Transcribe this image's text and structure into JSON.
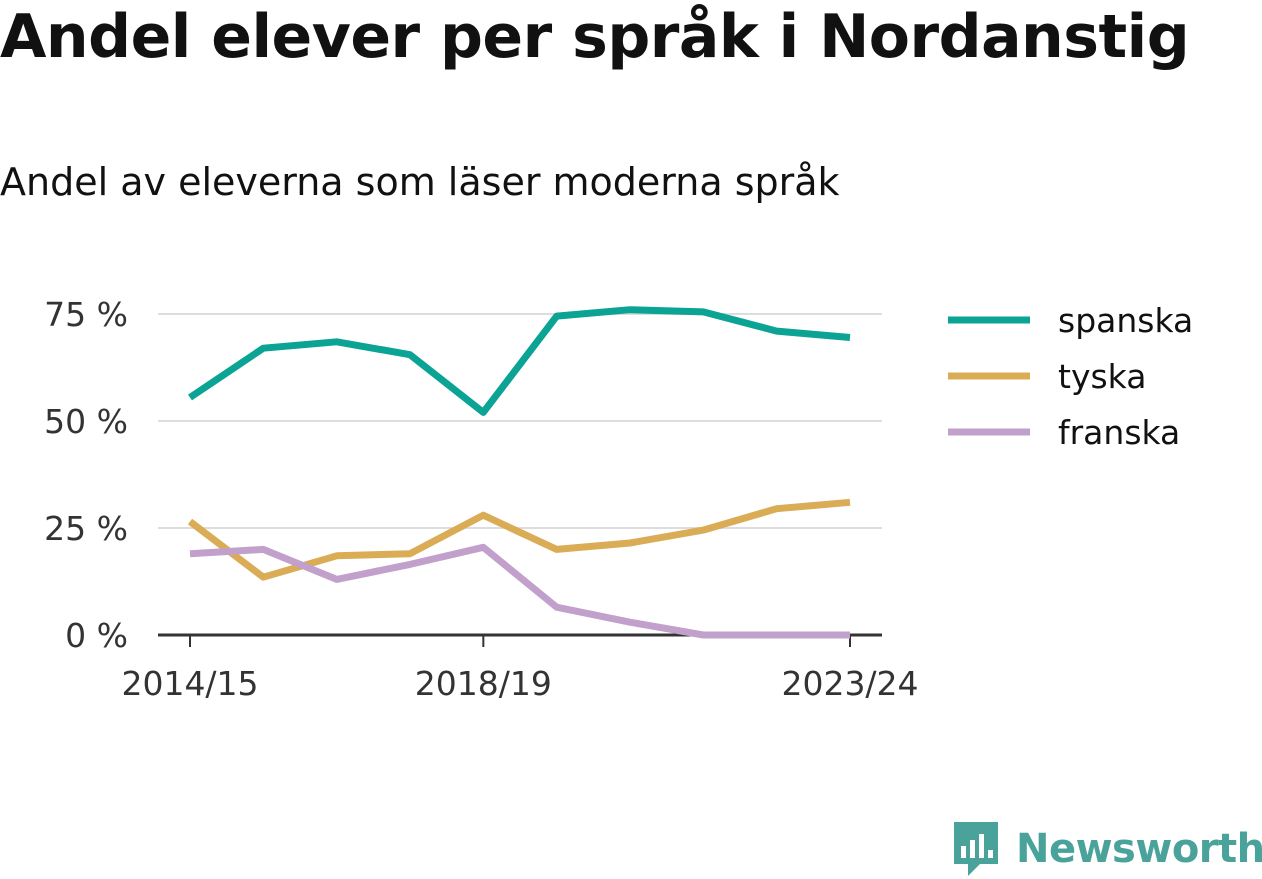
{
  "title": "Andel elever per språk i Nordanstig",
  "subtitle": "Andel av eleverna som läser moderna språk",
  "brand": "Newsworthy",
  "colors": {
    "accent": "#4aa39a",
    "grid": "#dddddd",
    "axis": "#333333"
  },
  "chart_data": {
    "type": "line",
    "x": [
      "2014/15",
      "2015/16",
      "2016/17",
      "2017/18",
      "2018/19",
      "2019/20",
      "2020/21",
      "2021/22",
      "2022/23",
      "2023/24"
    ],
    "x_tick_labels": [
      "2014/15",
      "2018/19",
      "2023/24"
    ],
    "y_ticks": [
      {
        "value": 0,
        "label": "0 %"
      },
      {
        "value": 25,
        "label": "25 %"
      },
      {
        "value": 50,
        "label": "50 %"
      },
      {
        "value": 75,
        "label": "75 %"
      }
    ],
    "ylim": [
      0,
      75
    ],
    "grid": true,
    "legend_position": "right",
    "series": [
      {
        "name": "spanska",
        "color": "#0aa394",
        "values": [
          55.5,
          67,
          68.5,
          65.5,
          52,
          74.5,
          76,
          75.5,
          71,
          69.5
        ]
      },
      {
        "name": "tyska",
        "color": "#d9ac55",
        "values": [
          26.5,
          13.5,
          18.5,
          19,
          28,
          20,
          21.5,
          24.5,
          29.5,
          31
        ]
      },
      {
        "name": "franska",
        "color": "#c2a0cc",
        "values": [
          19,
          20,
          13,
          16.5,
          20.5,
          6.5,
          3,
          0,
          0,
          0
        ]
      }
    ]
  }
}
